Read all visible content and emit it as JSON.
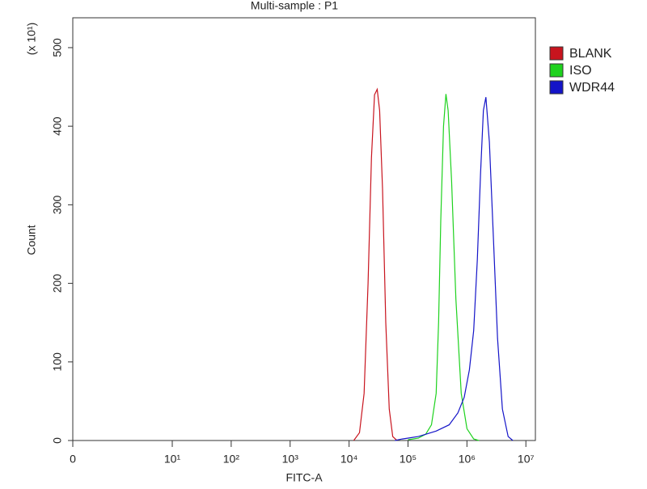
{
  "chart_data": {
    "type": "line",
    "title": "Multi-sample : P1",
    "xlabel": "FITC-A",
    "ylabel": "Count",
    "y_multiplier": "(x 10¹)",
    "xscale": "log",
    "xlim": [
      0,
      14500000
    ],
    "ylim": [
      0,
      538
    ],
    "xticks": [
      0,
      {
        "value": 10,
        "label": "10¹"
      },
      {
        "value": 100,
        "label": "10²"
      },
      {
        "value": 1000,
        "label": "10³"
      },
      {
        "value": 10000,
        "label": "10⁴"
      },
      {
        "value": 100000,
        "label": "10⁵"
      },
      {
        "value": 1000000,
        "label": "10⁶"
      },
      {
        "value": 10000000,
        "label": "10⁷"
      }
    ],
    "yticks": [
      0,
      100,
      200,
      300,
      400,
      500
    ],
    "legend": "right",
    "series": [
      {
        "name": "BLANK",
        "color": "#c8141e",
        "x": [
          12000,
          15000,
          18000,
          21000,
          24000,
          27000,
          30000,
          33000,
          37000,
          42000,
          48000,
          55000,
          65000
        ],
        "values": [
          0,
          10,
          60,
          200,
          360,
          440,
          447,
          420,
          320,
          150,
          40,
          5,
          0
        ]
      },
      {
        "name": "ISO",
        "color": "#1ed21e",
        "x": [
          100000,
          150000,
          200000,
          250000,
          300000,
          330000,
          360000,
          400000,
          440000,
          480000,
          550000,
          650000,
          800000,
          1000000,
          1300000,
          1600000
        ],
        "values": [
          1,
          3,
          8,
          20,
          60,
          150,
          280,
          400,
          441,
          420,
          330,
          180,
          60,
          15,
          2,
          0
        ]
      },
      {
        "name": "WDR44",
        "color": "#1414c8",
        "x": [
          60000,
          80000,
          150000,
          300000,
          500000,
          700000,
          900000,
          1100000,
          1300000,
          1500000,
          1700000,
          1900000,
          2100000,
          2400000,
          2800000,
          3300000,
          4000000,
          5000000,
          6000000
        ],
        "values": [
          0,
          2,
          5,
          12,
          20,
          35,
          55,
          90,
          140,
          230,
          340,
          420,
          437,
          380,
          260,
          130,
          40,
          5,
          0
        ]
      }
    ]
  }
}
